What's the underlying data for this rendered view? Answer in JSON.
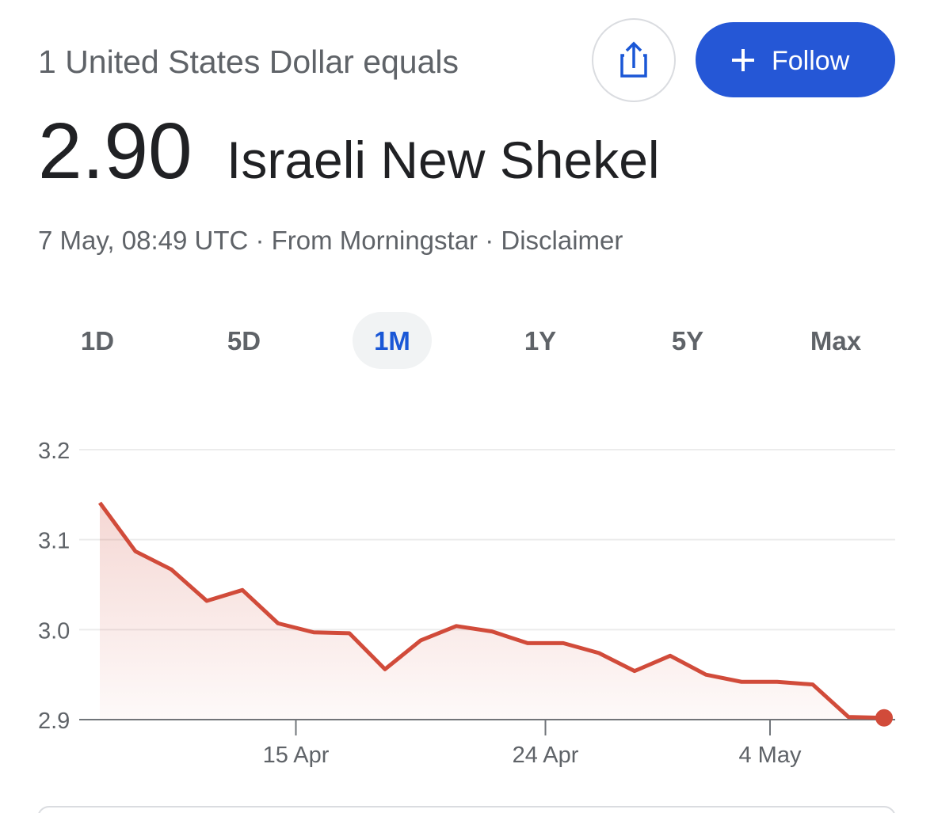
{
  "header": {
    "intro": "1 United States Dollar equals",
    "value": "2.90",
    "currency": "Israeli New Shekel",
    "follow": "Follow",
    "meta": "7 May, 08:49 UTC · From Morningstar · Disclaimer"
  },
  "tabs": {
    "labels": [
      "1D",
      "5D",
      "1M",
      "1Y",
      "5Y",
      "Max"
    ],
    "selected": 2
  },
  "chart_data": {
    "type": "line",
    "color": "#d14b3a",
    "grid": true,
    "x": [
      0,
      1,
      2,
      3,
      4,
      5,
      6,
      7,
      8,
      9,
      10,
      11,
      12,
      13,
      14,
      15,
      16,
      17,
      18,
      19,
      20,
      21,
      22
    ],
    "values": [
      3.141,
      3.087,
      3.067,
      3.032,
      3.044,
      3.007,
      2.997,
      2.996,
      2.956,
      2.988,
      3.004,
      2.998,
      2.985,
      2.985,
      2.974,
      2.954,
      2.971,
      2.95,
      2.942,
      2.942,
      2.939,
      2.903,
      2.902
    ],
    "xlim": [
      0,
      22
    ],
    "xticks": [
      {
        "value": 5.5,
        "label": "15 Apr"
      },
      {
        "value": 12.5,
        "label": "24 Apr"
      },
      {
        "value": 18.8,
        "label": "4 May"
      }
    ],
    "ylim": [
      2.9,
      3.2
    ],
    "yticks": [
      2.9,
      {
        "value": 3,
        "label": "3.0"
      },
      3.1,
      3.2
    ]
  }
}
